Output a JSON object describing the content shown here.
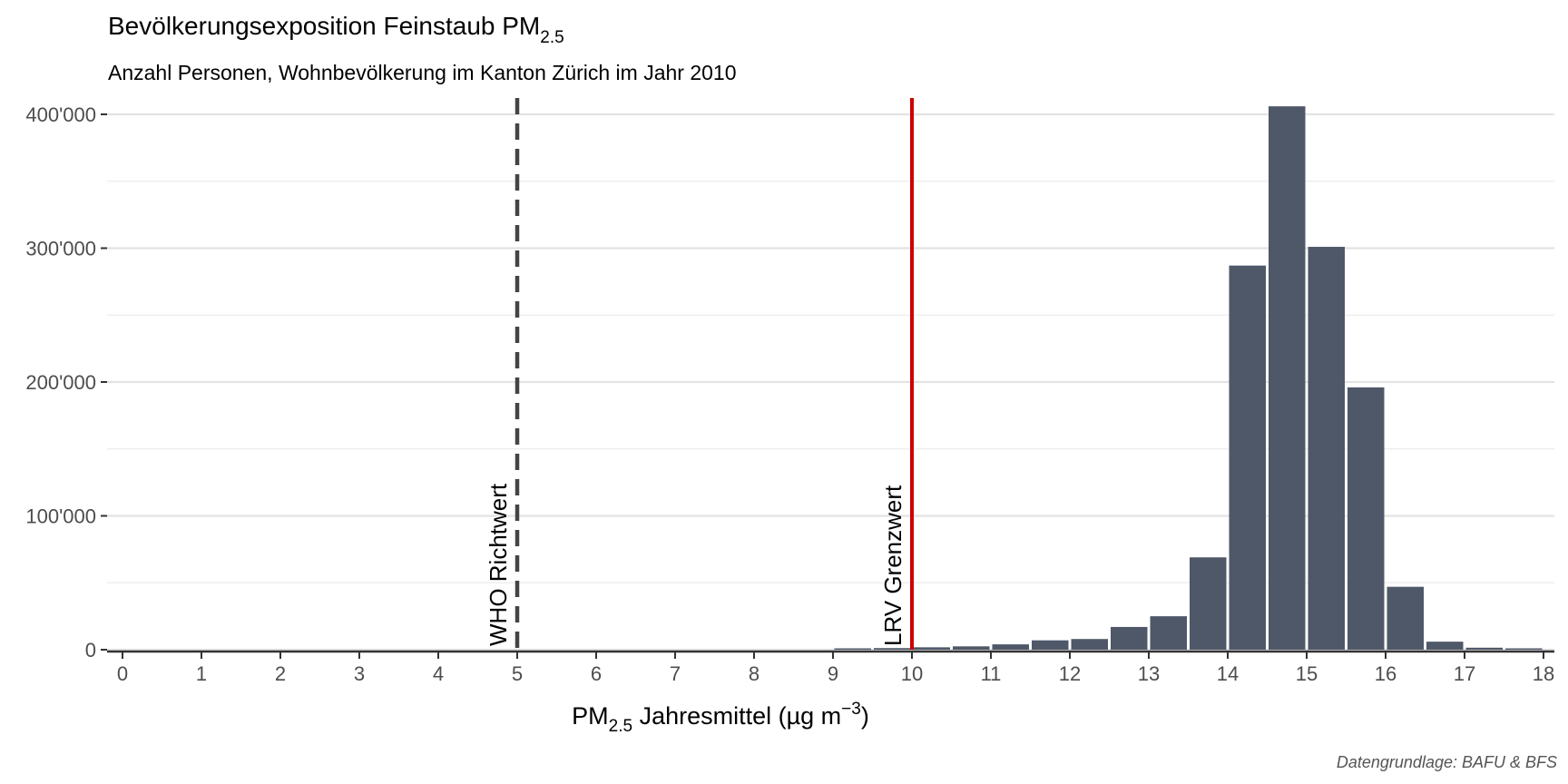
{
  "chart_data": {
    "type": "bar",
    "title": "Bevölkerungsexposition Feinstaub PM",
    "title_subscript": "2.5",
    "subtitle": "Anzahl Personen, Wohnbevölkerung im Kanton Zürich im Jahr 2010",
    "xlabel_prefix": "PM",
    "xlabel_subscript": "2.5",
    "xlabel_middle": " Jahresmittel (µg m",
    "xlabel_superscript": "−3",
    "xlabel_suffix": ")",
    "caption": "Datengrundlage: BAFU & BFS",
    "xlim": [
      0,
      18
    ],
    "ylim": [
      0,
      410000
    ],
    "x_ticks": [
      "0",
      "1",
      "2",
      "3",
      "4",
      "5",
      "6",
      "7",
      "8",
      "9",
      "10",
      "11",
      "12",
      "13",
      "14",
      "15",
      "16",
      "17",
      "18"
    ],
    "y_ticks": [
      {
        "value": 0,
        "label": "0"
      },
      {
        "value": 100000,
        "label": "100'000"
      },
      {
        "value": 200000,
        "label": "200'000"
      },
      {
        "value": 300000,
        "label": "300'000"
      },
      {
        "value": 400000,
        "label": "400'000"
      }
    ],
    "bin_width": 0.5,
    "bins": [
      {
        "x": 9.25,
        "value": 800
      },
      {
        "x": 9.75,
        "value": 1200
      },
      {
        "x": 10.25,
        "value": 1800
      },
      {
        "x": 10.75,
        "value": 2500
      },
      {
        "x": 11.25,
        "value": 4000
      },
      {
        "x": 11.75,
        "value": 7000
      },
      {
        "x": 12.25,
        "value": 8000
      },
      {
        "x": 12.75,
        "value": 17000
      },
      {
        "x": 13.25,
        "value": 25000
      },
      {
        "x": 13.75,
        "value": 69000
      },
      {
        "x": 14.25,
        "value": 287000
      },
      {
        "x": 14.75,
        "value": 406000
      },
      {
        "x": 15.25,
        "value": 301000
      },
      {
        "x": 15.75,
        "value": 196000
      },
      {
        "x": 16.25,
        "value": 47000
      },
      {
        "x": 16.75,
        "value": 6000
      },
      {
        "x": 17.25,
        "value": 1500
      },
      {
        "x": 17.75,
        "value": 800
      }
    ],
    "reference_lines": [
      {
        "x": 5,
        "label": "WHO Richtwert",
        "style": "dashed",
        "color": "#444444"
      },
      {
        "x": 10,
        "label": "LRV Grenzwert",
        "style": "solid",
        "color": "#cc0000"
      }
    ],
    "bar_color": "#4f5869",
    "grid": true
  }
}
